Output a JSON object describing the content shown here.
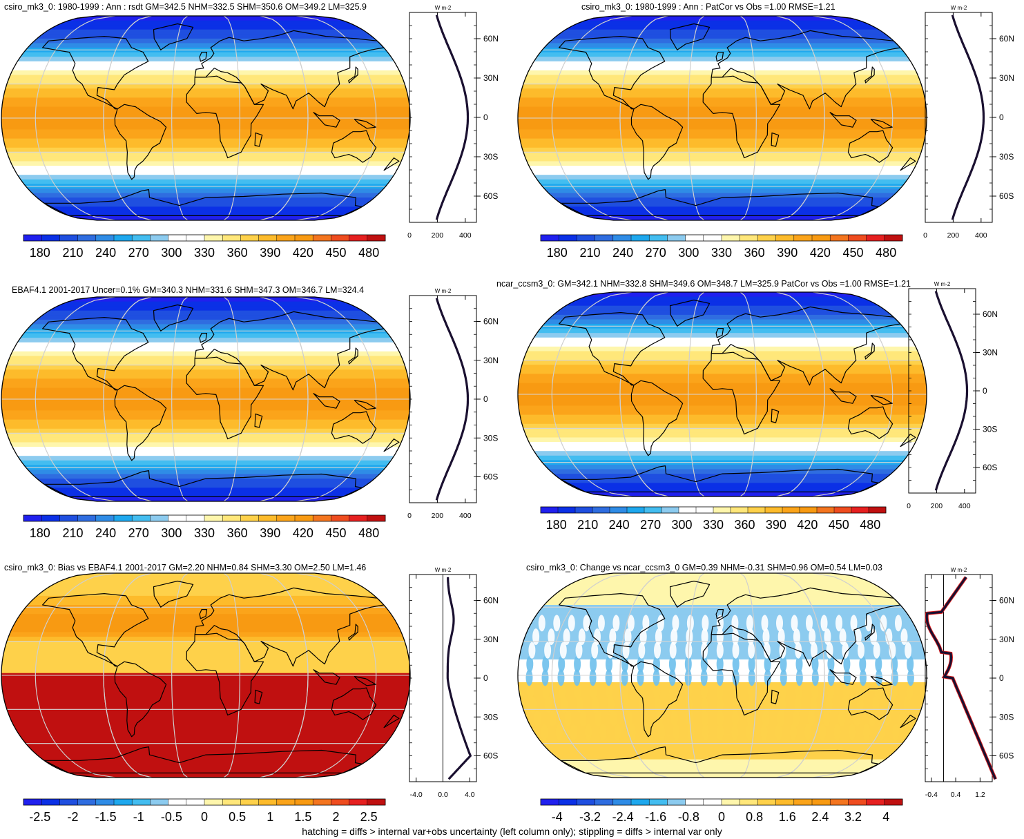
{
  "footer": "hatching = diffs > internal var+obs uncertainty (left column only); stippling = diffs > internal var only",
  "colors": {
    "abs_palette": [
      "#2020ee",
      "#0b30e6",
      "#1f4fe0",
      "#2f6de0",
      "#2f8ce6",
      "#1ea8ee",
      "#43bdf0",
      "#8ccbef",
      "#ffffff",
      "#ffffff",
      "#fef6ac",
      "#ffe77a",
      "#fed14a",
      "#fdbb2b",
      "#fba41a",
      "#f89a12",
      "#f4751f",
      "#ef4c1f",
      "#e62020",
      "#c01010"
    ],
    "diff_palette": [
      "#2020ee",
      "#0b30e6",
      "#1f4fe0",
      "#2f6de0",
      "#2f8ce6",
      "#1ea8ee",
      "#43bdf0",
      "#8ccbef",
      "#ffffff",
      "#ffffff",
      "#fef6ac",
      "#ffe77a",
      "#fed14a",
      "#fdbb2b",
      "#fba41a",
      "#f89a12",
      "#f4751f",
      "#ef4c1f",
      "#e62020",
      "#c01010"
    ]
  },
  "chart_data": [
    {
      "type": "heatmap",
      "projection": "robinson",
      "title": "csiro_mk3_0: 1980-1999 : Ann : rsdt GM=342.5 NHM=332.5 SHM=350.6 OM=349.2 LM=325.9",
      "field": "abs",
      "colorbar": {
        "min": 165,
        "max": 495,
        "ticks": [
          "180",
          "210",
          "240",
          "270",
          "300",
          "330",
          "360",
          "390",
          "420",
          "450",
          "480"
        ],
        "tick_values": [
          180,
          210,
          240,
          270,
          300,
          330,
          360,
          390,
          420,
          450,
          480
        ]
      },
      "zonal_profile": {
        "unit": "W m-2",
        "xlim": [
          0,
          480
        ],
        "xticks": [
          "0",
          "200",
          "400"
        ],
        "xtick_values": [
          0,
          200,
          400
        ],
        "yticks": [
          "60N",
          "30N",
          "0",
          "30S",
          "60S"
        ],
        "ytick_lats": [
          60,
          30,
          0,
          -30,
          -60
        ],
        "curve": "abs"
      }
    },
    {
      "type": "heatmap",
      "projection": "robinson",
      "title": "csiro_mk3_0: 1980-1999 : Ann : PatCor vs Obs =1.00 RMSE=1.21",
      "field": "abs",
      "colorbar": {
        "min": 165,
        "max": 495,
        "ticks": [
          "180",
          "210",
          "240",
          "270",
          "300",
          "330",
          "360",
          "390",
          "420",
          "450",
          "480"
        ],
        "tick_values": [
          180,
          210,
          240,
          270,
          300,
          330,
          360,
          390,
          420,
          450,
          480
        ]
      },
      "zonal_profile": {
        "unit": "W m-2",
        "xlim": [
          0,
          480
        ],
        "xticks": [
          "0",
          "200",
          "400"
        ],
        "xtick_values": [
          0,
          200,
          400
        ],
        "yticks": [
          "60N",
          "30N",
          "0",
          "30S",
          "60S"
        ],
        "ytick_lats": [
          60,
          30,
          0,
          -30,
          -60
        ],
        "curve": "abs"
      }
    },
    {
      "type": "heatmap",
      "projection": "robinson",
      "title": "EBAF4.1 2001-2017 Uncer=0.1% GM=340.3 NHM=331.6 SHM=347.3 OM=346.7 LM=324.4",
      "field": "abs",
      "colorbar": {
        "min": 165,
        "max": 495,
        "ticks": [
          "180",
          "210",
          "240",
          "270",
          "300",
          "330",
          "360",
          "390",
          "420",
          "450",
          "480"
        ],
        "tick_values": [
          180,
          210,
          240,
          270,
          300,
          330,
          360,
          390,
          420,
          450,
          480
        ]
      },
      "zonal_profile": {
        "unit": "W m-2",
        "xlim": [
          0,
          480
        ],
        "xticks": [
          "0",
          "200",
          "400"
        ],
        "xtick_values": [
          0,
          200,
          400
        ],
        "yticks": [
          "60N",
          "30N",
          "0",
          "30S",
          "60S"
        ],
        "ytick_lats": [
          60,
          30,
          0,
          -30,
          -60
        ],
        "curve": "abs"
      }
    },
    {
      "type": "heatmap",
      "projection": "robinson",
      "title": "ncar_ccsm3_0: GM=342.1 NHM=332.8 SHM=349.6 OM=348.7 LM=325.9 PatCor vs Obs =1.00 RMSE=1.21",
      "field": "abs",
      "colorbar": {
        "min": 165,
        "max": 495,
        "ticks": [
          "180",
          "210",
          "240",
          "270",
          "300",
          "330",
          "360",
          "390",
          "420",
          "450",
          "480"
        ],
        "tick_values": [
          180,
          210,
          240,
          270,
          300,
          330,
          360,
          390,
          420,
          450,
          480
        ]
      },
      "zonal_profile": {
        "unit": "W m-2",
        "xlim": [
          0,
          480
        ],
        "xticks": [
          "0",
          "200",
          "400"
        ],
        "xtick_values": [
          0,
          200,
          400
        ],
        "yticks": [
          "60N",
          "30N",
          "0",
          "30S",
          "60S"
        ],
        "ytick_lats": [
          60,
          30,
          0,
          -30,
          -60
        ],
        "curve": "abs"
      }
    },
    {
      "type": "heatmap",
      "projection": "robinson",
      "title": "csiro_mk3_0: Bias vs EBAF4.1 2001-2017 GM=2.20 NHM=0.84 SHM=3.30 OM=2.50 LM=1.46",
      "field": "bias",
      "colorbar": {
        "min": -2.75,
        "max": 2.75,
        "ticks": [
          "-2.5",
          "-2",
          "-1.5",
          "-1",
          "-0.5",
          "0",
          "0.5",
          "1",
          "1.5",
          "2",
          "2.5"
        ],
        "tick_values": [
          -2.5,
          -2,
          -1.5,
          -1,
          -0.5,
          0,
          0.5,
          1,
          1.5,
          2,
          2.5
        ]
      },
      "zonal_profile": {
        "unit": "W m-2",
        "xlim": [
          -5,
          5
        ],
        "xticks": [
          "-4.0",
          "0.0",
          "4.0"
        ],
        "xtick_values": [
          -4,
          0,
          4
        ],
        "yticks": [
          "60N",
          "30N",
          "0",
          "30S",
          "60S"
        ],
        "ytick_lats": [
          60,
          30,
          0,
          -30,
          -60
        ],
        "curve": "bias"
      }
    },
    {
      "type": "heatmap",
      "projection": "robinson",
      "title": "csiro_mk3_0: Change vs ncar_ccsm3_0 GM=0.39 NHM=-0.31 SHM=0.96 OM=0.54 LM=0.03",
      "field": "change",
      "colorbar": {
        "min": -4.4,
        "max": 4.4,
        "ticks": [
          "-4",
          "-3.2",
          "-2.4",
          "-1.6",
          "-0.8",
          "0",
          "0.8",
          "1.6",
          "2.4",
          "3.2",
          "4"
        ],
        "tick_values": [
          -4,
          -3.2,
          -2.4,
          -1.6,
          -0.8,
          0,
          0.8,
          1.6,
          2.4,
          3.2,
          4
        ]
      },
      "zonal_profile": {
        "unit": "W m-2",
        "xlim": [
          -0.6,
          1.6
        ],
        "xticks": [
          "-0.4",
          "0.4",
          "1.2"
        ],
        "xtick_values": [
          -0.4,
          0.4,
          1.2
        ],
        "yticks": [
          "60N",
          "30N",
          "0",
          "30S",
          "60S"
        ],
        "ytick_lats": [
          60,
          30,
          0,
          -30,
          -60
        ],
        "curve": "change"
      }
    }
  ]
}
